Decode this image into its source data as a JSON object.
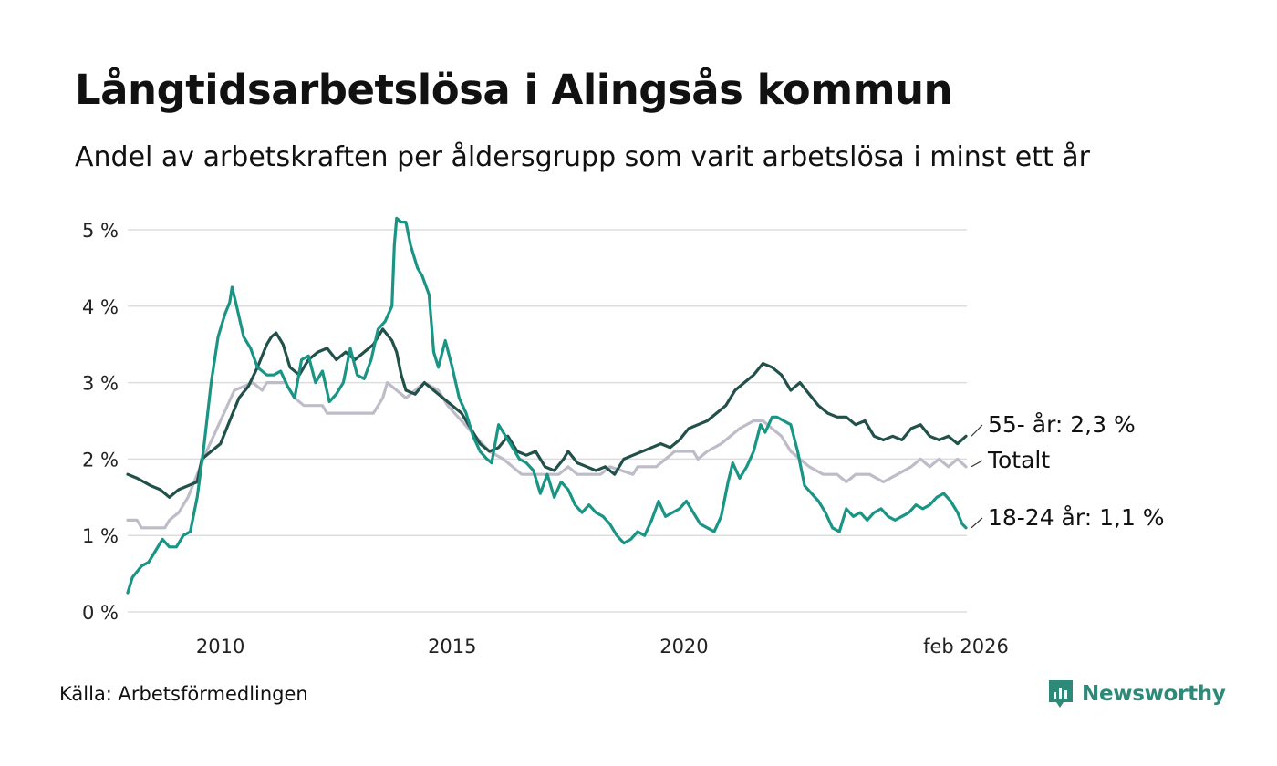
{
  "header": {
    "title": "Långtidsarbetslösa i Alingsås kommun",
    "subtitle": "Andel av arbetskraften per åldersgrupp som varit arbetslösa i minst ett år"
  },
  "footer": {
    "source": "Källa: Arbetsförmedlingen",
    "brand": "Newsworthy",
    "brand_icon": "newsworthy-logo-icon"
  },
  "colors": {
    "older": "#22504a",
    "young": "#1a9484",
    "total": "#bfbcc9",
    "grid": "#dddddd",
    "brand": "#2d8a78"
  },
  "chart_data": {
    "type": "line",
    "title": "Långtidsarbetslösa i Alingsås kommun",
    "ylim": [
      0,
      5
    ],
    "xlim": [
      2008.0,
      2026.1
    ],
    "grid": true,
    "y_ticks": [
      {
        "value": 0,
        "label": "0 %"
      },
      {
        "value": 1,
        "label": "1 %"
      },
      {
        "value": 2,
        "label": "2 %"
      },
      {
        "value": 3,
        "label": "3 %"
      },
      {
        "value": 4,
        "label": "4 %"
      },
      {
        "value": 5,
        "label": "5 %"
      }
    ],
    "x_ticks": [
      {
        "value": 2010,
        "label": "2010"
      },
      {
        "value": 2015,
        "label": "2015"
      },
      {
        "value": 2020,
        "label": "2020"
      },
      {
        "value": 2026.08,
        "label": "feb 2026"
      }
    ],
    "series": [
      {
        "name": "Totalt",
        "key": "total",
        "end_label": "Totalt",
        "points": [
          [
            2008.0,
            1.2
          ],
          [
            2008.2,
            1.2
          ],
          [
            2008.3,
            1.1
          ],
          [
            2008.8,
            1.1
          ],
          [
            2008.9,
            1.2
          ],
          [
            2009.1,
            1.3
          ],
          [
            2009.3,
            1.5
          ],
          [
            2009.5,
            1.8
          ],
          [
            2009.7,
            2.1
          ],
          [
            2010.0,
            2.5
          ],
          [
            2010.3,
            2.9
          ],
          [
            2010.7,
            3.0
          ],
          [
            2010.9,
            2.9
          ],
          [
            2011.0,
            3.0
          ],
          [
            2011.4,
            3.0
          ],
          [
            2011.6,
            2.8
          ],
          [
            2011.8,
            2.7
          ],
          [
            2012.2,
            2.7
          ],
          [
            2012.3,
            2.6
          ],
          [
            2013.3,
            2.6
          ],
          [
            2013.5,
            2.8
          ],
          [
            2013.6,
            3.0
          ],
          [
            2013.8,
            2.9
          ],
          [
            2014.0,
            2.8
          ],
          [
            2014.2,
            2.9
          ],
          [
            2014.4,
            3.0
          ],
          [
            2014.7,
            2.9
          ],
          [
            2014.9,
            2.7
          ],
          [
            2015.2,
            2.5
          ],
          [
            2015.5,
            2.3
          ],
          [
            2015.8,
            2.1
          ],
          [
            2016.1,
            2.0
          ],
          [
            2016.3,
            1.9
          ],
          [
            2016.5,
            1.8
          ],
          [
            2017.3,
            1.8
          ],
          [
            2017.5,
            1.9
          ],
          [
            2017.7,
            1.8
          ],
          [
            2018.2,
            1.8
          ],
          [
            2018.4,
            1.9
          ],
          [
            2018.9,
            1.8
          ],
          [
            2019.0,
            1.9
          ],
          [
            2019.4,
            1.9
          ],
          [
            2019.6,
            2.0
          ],
          [
            2019.8,
            2.1
          ],
          [
            2020.2,
            2.1
          ],
          [
            2020.3,
            2.0
          ],
          [
            2020.5,
            2.1
          ],
          [
            2020.8,
            2.2
          ],
          [
            2021.0,
            2.3
          ],
          [
            2021.2,
            2.4
          ],
          [
            2021.5,
            2.5
          ],
          [
            2021.7,
            2.5
          ],
          [
            2021.9,
            2.4
          ],
          [
            2022.1,
            2.3
          ],
          [
            2022.3,
            2.1
          ],
          [
            2022.5,
            2.0
          ],
          [
            2022.7,
            1.9
          ],
          [
            2023.0,
            1.8
          ],
          [
            2023.3,
            1.8
          ],
          [
            2023.5,
            1.7
          ],
          [
            2023.7,
            1.8
          ],
          [
            2024.0,
            1.8
          ],
          [
            2024.3,
            1.7
          ],
          [
            2024.6,
            1.8
          ],
          [
            2024.9,
            1.9
          ],
          [
            2025.1,
            2.0
          ],
          [
            2025.3,
            1.9
          ],
          [
            2025.5,
            2.0
          ],
          [
            2025.7,
            1.9
          ],
          [
            2025.9,
            2.0
          ],
          [
            2026.08,
            1.9
          ]
        ]
      },
      {
        "name": "55- år",
        "key": "older",
        "end_label": "55- år: 2,3 %",
        "points": [
          [
            2008.0,
            1.8
          ],
          [
            2008.2,
            1.75
          ],
          [
            2008.5,
            1.65
          ],
          [
            2008.7,
            1.6
          ],
          [
            2008.9,
            1.5
          ],
          [
            2009.1,
            1.6
          ],
          [
            2009.3,
            1.65
          ],
          [
            2009.5,
            1.7
          ],
          [
            2009.6,
            2.0
          ],
          [
            2009.8,
            2.1
          ],
          [
            2010.0,
            2.2
          ],
          [
            2010.2,
            2.5
          ],
          [
            2010.4,
            2.8
          ],
          [
            2010.6,
            2.95
          ],
          [
            2010.8,
            3.2
          ],
          [
            2011.0,
            3.5
          ],
          [
            2011.1,
            3.6
          ],
          [
            2011.2,
            3.65
          ],
          [
            2011.35,
            3.5
          ],
          [
            2011.5,
            3.2
          ],
          [
            2011.7,
            3.1
          ],
          [
            2011.9,
            3.3
          ],
          [
            2012.1,
            3.4
          ],
          [
            2012.3,
            3.45
          ],
          [
            2012.5,
            3.3
          ],
          [
            2012.7,
            3.4
          ],
          [
            2012.9,
            3.3
          ],
          [
            2013.1,
            3.4
          ],
          [
            2013.3,
            3.5
          ],
          [
            2013.5,
            3.7
          ],
          [
            2013.7,
            3.55
          ],
          [
            2013.8,
            3.4
          ],
          [
            2013.9,
            3.1
          ],
          [
            2014.0,
            2.9
          ],
          [
            2014.2,
            2.85
          ],
          [
            2014.4,
            3.0
          ],
          [
            2014.6,
            2.9
          ],
          [
            2014.8,
            2.8
          ],
          [
            2015.0,
            2.7
          ],
          [
            2015.2,
            2.6
          ],
          [
            2015.4,
            2.4
          ],
          [
            2015.6,
            2.2
          ],
          [
            2015.8,
            2.1
          ],
          [
            2016.0,
            2.15
          ],
          [
            2016.2,
            2.3
          ],
          [
            2016.4,
            2.1
          ],
          [
            2016.6,
            2.05
          ],
          [
            2016.8,
            2.1
          ],
          [
            2017.0,
            1.9
          ],
          [
            2017.2,
            1.85
          ],
          [
            2017.4,
            2.0
          ],
          [
            2017.5,
            2.1
          ],
          [
            2017.7,
            1.95
          ],
          [
            2017.9,
            1.9
          ],
          [
            2018.1,
            1.85
          ],
          [
            2018.3,
            1.9
          ],
          [
            2018.5,
            1.8
          ],
          [
            2018.7,
            2.0
          ],
          [
            2018.9,
            2.05
          ],
          [
            2019.1,
            2.1
          ],
          [
            2019.3,
            2.15
          ],
          [
            2019.5,
            2.2
          ],
          [
            2019.7,
            2.15
          ],
          [
            2019.9,
            2.25
          ],
          [
            2020.1,
            2.4
          ],
          [
            2020.3,
            2.45
          ],
          [
            2020.5,
            2.5
          ],
          [
            2020.7,
            2.6
          ],
          [
            2020.9,
            2.7
          ],
          [
            2021.1,
            2.9
          ],
          [
            2021.3,
            3.0
          ],
          [
            2021.5,
            3.1
          ],
          [
            2021.7,
            3.25
          ],
          [
            2021.9,
            3.2
          ],
          [
            2022.1,
            3.1
          ],
          [
            2022.3,
            2.9
          ],
          [
            2022.5,
            3.0
          ],
          [
            2022.7,
            2.85
          ],
          [
            2022.9,
            2.7
          ],
          [
            2023.1,
            2.6
          ],
          [
            2023.3,
            2.55
          ],
          [
            2023.5,
            2.55
          ],
          [
            2023.7,
            2.45
          ],
          [
            2023.9,
            2.5
          ],
          [
            2024.1,
            2.3
          ],
          [
            2024.3,
            2.25
          ],
          [
            2024.5,
            2.3
          ],
          [
            2024.7,
            2.25
          ],
          [
            2024.9,
            2.4
          ],
          [
            2025.1,
            2.45
          ],
          [
            2025.3,
            2.3
          ],
          [
            2025.5,
            2.25
          ],
          [
            2025.7,
            2.3
          ],
          [
            2025.9,
            2.2
          ],
          [
            2026.08,
            2.3
          ]
        ]
      },
      {
        "name": "18-24 år",
        "key": "young",
        "end_label": "18-24 år: 1,1 %",
        "points": [
          [
            2008.0,
            0.25
          ],
          [
            2008.1,
            0.45
          ],
          [
            2008.3,
            0.6
          ],
          [
            2008.45,
            0.65
          ],
          [
            2008.6,
            0.8
          ],
          [
            2008.75,
            0.95
          ],
          [
            2008.9,
            0.85
          ],
          [
            2009.05,
            0.85
          ],
          [
            2009.2,
            1.0
          ],
          [
            2009.35,
            1.05
          ],
          [
            2009.5,
            1.5
          ],
          [
            2009.65,
            2.2
          ],
          [
            2009.8,
            3.0
          ],
          [
            2009.95,
            3.6
          ],
          [
            2010.1,
            3.9
          ],
          [
            2010.2,
            4.05
          ],
          [
            2010.25,
            4.25
          ],
          [
            2010.35,
            4.0
          ],
          [
            2010.5,
            3.6
          ],
          [
            2010.65,
            3.45
          ],
          [
            2010.8,
            3.2
          ],
          [
            2011.0,
            3.1
          ],
          [
            2011.15,
            3.1
          ],
          [
            2011.3,
            3.15
          ],
          [
            2011.45,
            2.95
          ],
          [
            2011.6,
            2.8
          ],
          [
            2011.75,
            3.3
          ],
          [
            2011.9,
            3.35
          ],
          [
            2012.05,
            3.0
          ],
          [
            2012.2,
            3.15
          ],
          [
            2012.35,
            2.75
          ],
          [
            2012.5,
            2.85
          ],
          [
            2012.65,
            3.0
          ],
          [
            2012.8,
            3.45
          ],
          [
            2012.95,
            3.1
          ],
          [
            2013.1,
            3.05
          ],
          [
            2013.25,
            3.3
          ],
          [
            2013.4,
            3.7
          ],
          [
            2013.55,
            3.8
          ],
          [
            2013.7,
            4.0
          ],
          [
            2013.75,
            4.8
          ],
          [
            2013.8,
            5.15
          ],
          [
            2013.9,
            5.1
          ],
          [
            2014.0,
            5.1
          ],
          [
            2014.1,
            4.8
          ],
          [
            2014.25,
            4.5
          ],
          [
            2014.35,
            4.4
          ],
          [
            2014.5,
            4.15
          ],
          [
            2014.6,
            3.4
          ],
          [
            2014.7,
            3.2
          ],
          [
            2014.85,
            3.55
          ],
          [
            2015.0,
            3.2
          ],
          [
            2015.15,
            2.8
          ],
          [
            2015.3,
            2.6
          ],
          [
            2015.45,
            2.3
          ],
          [
            2015.6,
            2.1
          ],
          [
            2015.75,
            2.0
          ],
          [
            2015.85,
            1.95
          ],
          [
            2016.0,
            2.45
          ],
          [
            2016.15,
            2.3
          ],
          [
            2016.3,
            2.15
          ],
          [
            2016.45,
            2.0
          ],
          [
            2016.6,
            1.95
          ],
          [
            2016.75,
            1.85
          ],
          [
            2016.9,
            1.55
          ],
          [
            2017.05,
            1.8
          ],
          [
            2017.2,
            1.5
          ],
          [
            2017.35,
            1.7
          ],
          [
            2017.5,
            1.6
          ],
          [
            2017.65,
            1.4
          ],
          [
            2017.8,
            1.3
          ],
          [
            2017.95,
            1.4
          ],
          [
            2018.1,
            1.3
          ],
          [
            2018.25,
            1.25
          ],
          [
            2018.4,
            1.15
          ],
          [
            2018.55,
            1.0
          ],
          [
            2018.7,
            0.9
          ],
          [
            2018.85,
            0.95
          ],
          [
            2019.0,
            1.05
          ],
          [
            2019.15,
            1.0
          ],
          [
            2019.3,
            1.2
          ],
          [
            2019.45,
            1.45
          ],
          [
            2019.6,
            1.25
          ],
          [
            2019.75,
            1.3
          ],
          [
            2019.9,
            1.35
          ],
          [
            2020.05,
            1.45
          ],
          [
            2020.2,
            1.3
          ],
          [
            2020.35,
            1.15
          ],
          [
            2020.5,
            1.1
          ],
          [
            2020.65,
            1.05
          ],
          [
            2020.8,
            1.25
          ],
          [
            2020.95,
            1.7
          ],
          [
            2021.05,
            1.95
          ],
          [
            2021.2,
            1.75
          ],
          [
            2021.35,
            1.9
          ],
          [
            2021.5,
            2.1
          ],
          [
            2021.65,
            2.45
          ],
          [
            2021.75,
            2.35
          ],
          [
            2021.9,
            2.55
          ],
          [
            2022.0,
            2.55
          ],
          [
            2022.15,
            2.5
          ],
          [
            2022.3,
            2.45
          ],
          [
            2022.45,
            2.1
          ],
          [
            2022.6,
            1.65
          ],
          [
            2022.75,
            1.55
          ],
          [
            2022.9,
            1.45
          ],
          [
            2023.05,
            1.3
          ],
          [
            2023.2,
            1.1
          ],
          [
            2023.35,
            1.05
          ],
          [
            2023.5,
            1.35
          ],
          [
            2023.65,
            1.25
          ],
          [
            2023.8,
            1.3
          ],
          [
            2023.95,
            1.2
          ],
          [
            2024.1,
            1.3
          ],
          [
            2024.25,
            1.35
          ],
          [
            2024.4,
            1.25
          ],
          [
            2024.55,
            1.2
          ],
          [
            2024.7,
            1.25
          ],
          [
            2024.85,
            1.3
          ],
          [
            2025.0,
            1.4
          ],
          [
            2025.15,
            1.35
          ],
          [
            2025.3,
            1.4
          ],
          [
            2025.45,
            1.5
          ],
          [
            2025.6,
            1.55
          ],
          [
            2025.75,
            1.45
          ],
          [
            2025.9,
            1.3
          ],
          [
            2026.0,
            1.15
          ],
          [
            2026.08,
            1.1
          ]
        ]
      }
    ]
  }
}
